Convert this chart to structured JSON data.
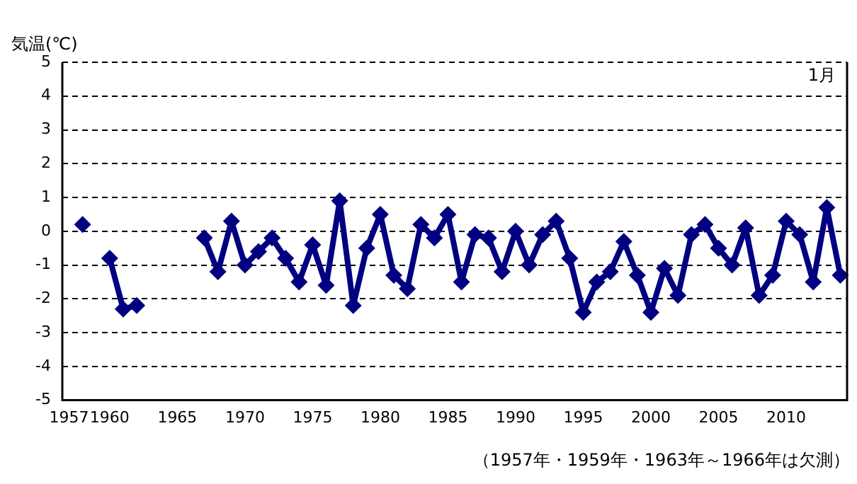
{
  "chart_data": {
    "type": "line",
    "ylabel": "気温(℃)",
    "annotations": [
      "1月",
      "（1957年・1959年・1963年～1966年は欠測）"
    ],
    "categories": [
      "1957",
      null,
      null,
      "1960",
      null,
      null,
      null,
      null,
      "1965",
      null,
      null,
      null,
      null,
      "1970",
      null,
      null,
      null,
      null,
      "1975",
      null,
      null,
      null,
      null,
      "1980",
      null,
      null,
      null,
      null,
      "1985",
      null,
      null,
      null,
      null,
      "1990",
      null,
      null,
      null,
      null,
      "1995",
      null,
      null,
      null,
      null,
      "2000",
      null,
      null,
      null,
      null,
      "2005",
      null,
      null,
      null,
      null,
      "2010",
      null,
      null,
      null,
      null
    ],
    "series": [
      {
        "color": "#000080",
        "values": [
          null,
          0.2,
          null,
          -0.8,
          -2.3,
          -2.2,
          null,
          null,
          null,
          null,
          -0.2,
          -1.2,
          0.3,
          -1.0,
          -0.6,
          -0.2,
          -0.8,
          -1.5,
          -0.4,
          -1.6,
          0.9,
          -2.2,
          -0.5,
          0.5,
          -1.3,
          -1.7,
          0.2,
          -0.2,
          0.5,
          -1.5,
          -0.1,
          -0.2,
          -1.2,
          0.0,
          -1.0,
          -0.1,
          0.3,
          -0.8,
          -2.4,
          -1.5,
          -1.2,
          -0.3,
          -1.3,
          -2.4,
          -1.1,
          -1.9,
          -0.1,
          0.2,
          -0.5,
          -1.0,
          0.1,
          -1.9,
          -1.3,
          0.3,
          -0.1,
          -1.5,
          0.7,
          -1.3
        ]
      }
    ],
    "ylim": [
      -5,
      5
    ],
    "yticks": [
      -5,
      -4,
      -3,
      -2,
      -1,
      0,
      1,
      2,
      3,
      4,
      5
    ],
    "grid": "y",
    "legend": false,
    "marker": "diamond",
    "line_style": "solid"
  }
}
